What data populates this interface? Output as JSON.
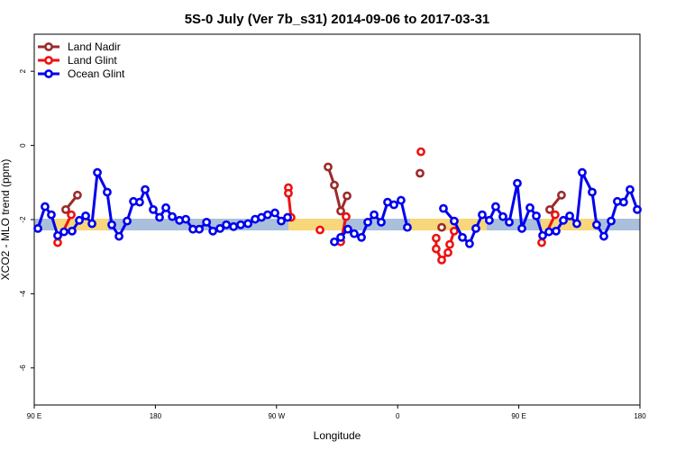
{
  "chart_data": {
    "type": "line",
    "title": "5S-0 July (Ver 7b_s31)   2014-09-06 to 2017-03-31",
    "x_label": "Longitude",
    "y_label": "XCO2 - MLO trend (ppm)",
    "xlim": [
      90,
      540
    ],
    "ylim": [
      -7,
      3
    ],
    "xticks": [
      {
        "value": 90,
        "label": "90 E"
      },
      180,
      {
        "value": 270,
        "label": "90 W"
      },
      {
        "value": 360,
        "label": "0"
      },
      {
        "value": 450,
        "label": "90 E"
      },
      {
        "value": 540,
        "label": "180"
      }
    ],
    "yticks": [
      2,
      0,
      -2,
      -4,
      -6
    ],
    "legend": "top-left",
    "series": [
      {
        "name": "Land Nadir",
        "color": "#9c2a2a",
        "x": [
          113.4,
          122.1,
          131.5,
          308.3,
          313.0,
          317.7,
          322.4,
          345.8,
          376.6,
          384.6,
          392.7,
          432.8,
          473.0,
          481.7
        ],
        "values": [
          -1.73,
          -1.34,
          null,
          -0.58,
          -1.07,
          -1.77,
          -1.36,
          null,
          -0.75,
          null,
          -2.21,
          null,
          -1.73,
          -1.34
        ]
      },
      {
        "name": "Land Glint",
        "color": "#ee1111",
        "x": [
          107.4,
          117.5,
          198.5,
          278.8,
          278.8,
          280.8,
          292.2,
          302.3,
          309.6,
          317.7,
          321.7,
          345.8,
          377.3,
          382.6,
          388.6,
          388.6,
          392.7,
          397.4,
          398.7,
          402.0,
          432.8,
          467.0,
          477.0
        ],
        "values": [
          -2.62,
          -1.87,
          null,
          -1.14,
          -1.29,
          -1.94,
          null,
          -2.28,
          null,
          -2.6,
          -1.92,
          null,
          -0.17,
          null,
          -2.5,
          -2.79,
          -3.09,
          -2.89,
          -2.67,
          -2.31,
          null,
          -2.62,
          -1.87
        ]
      },
      {
        "name": "Ocean Glint",
        "color": "#0000ee",
        "x": [
          92.7,
          98.0,
          102.7,
          107.4,
          112.1,
          118.1,
          123.5,
          128.2,
          132.9,
          136.9,
          144.2,
          147.6,
          153.0,
          159.0,
          163.7,
          168.3,
          172.4,
          178.4,
          183.1,
          187.8,
          192.5,
          197.9,
          202.6,
          207.9,
          212.6,
          218.0,
          222.7,
          228.0,
          232.7,
          238.1,
          243.4,
          248.8,
          254.1,
          258.8,
          263.4,
          268.8,
          273.5,
          278.2,
          295.6,
          313.0,
          317.7,
          323.0,
          327.7,
          333.1,
          337.8,
          342.5,
          347.8,
          352.5,
          357.2,
          362.5,
          367.2,
          379.3,
          394.0,
          402.0,
          408.1,
          413.4,
          418.1,
          422.8,
          428.1,
          432.8,
          438.2,
          442.9,
          448.9,
          452.3,
          458.3,
          463.0,
          467.7,
          472.4,
          477.7,
          483.1,
          487.8,
          493.1,
          497.1,
          504.5,
          507.8,
          513.2,
          518.6,
          523.2,
          527.9,
          532.6,
          538.0
        ],
        "values": [
          -2.24,
          -1.65,
          -1.87,
          -2.43,
          -2.33,
          -2.31,
          -2.02,
          -1.9,
          -2.11,
          -0.73,
          -1.26,
          -2.14,
          -2.45,
          -2.04,
          -1.51,
          -1.53,
          -1.19,
          -1.73,
          -1.94,
          -1.68,
          -1.92,
          -2.02,
          -1.99,
          -2.26,
          -2.26,
          -2.07,
          -2.31,
          -2.24,
          -2.14,
          -2.19,
          -2.14,
          -2.11,
          -1.99,
          -1.94,
          -1.87,
          -1.82,
          -2.04,
          -1.94,
          null,
          -2.6,
          -2.48,
          -2.26,
          -2.38,
          -2.48,
          -2.07,
          -1.87,
          -2.07,
          -1.53,
          -1.6,
          -1.48,
          -2.21,
          null,
          -1.7,
          -2.04,
          -2.48,
          -2.65,
          -2.24,
          -1.87,
          -2.02,
          -1.65,
          -1.92,
          -2.07,
          -1.02,
          -2.24,
          -1.68,
          -1.9,
          -2.43,
          -2.33,
          -2.31,
          -2.02,
          -1.9,
          -2.11,
          -0.73,
          -1.26,
          -2.14,
          -2.45,
          -2.04,
          -1.51,
          -1.53,
          -1.19,
          -1.73
        ]
      }
    ]
  }
}
